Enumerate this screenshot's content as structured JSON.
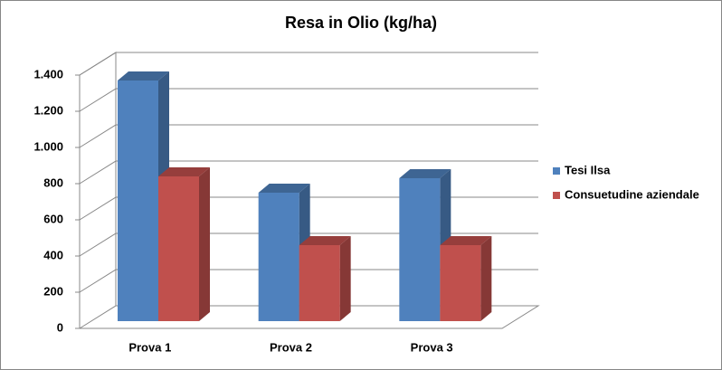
{
  "chart_data": {
    "type": "bar3d",
    "title": "Resa in Olio (kg/ha)",
    "categories": [
      "Prova 1",
      "Prova 2",
      "Prova 3"
    ],
    "series": [
      {
        "name": "Tesi Ilsa",
        "color": "#4f81bd",
        "values": [
          1330,
          710,
          790
        ]
      },
      {
        "name": "Consuetudine aziendale",
        "color": "#c0504d",
        "values": [
          800,
          420,
          420
        ]
      }
    ],
    "ylim": [
      0,
      1400
    ],
    "yticks": [
      0,
      200,
      400,
      600,
      800,
      {
        "value": 1000,
        "label": "1.000"
      },
      {
        "value": 1200,
        "label": "1.200"
      },
      {
        "value": 1400,
        "label": "1.400"
      }
    ],
    "grid": true,
    "legend": "right"
  }
}
